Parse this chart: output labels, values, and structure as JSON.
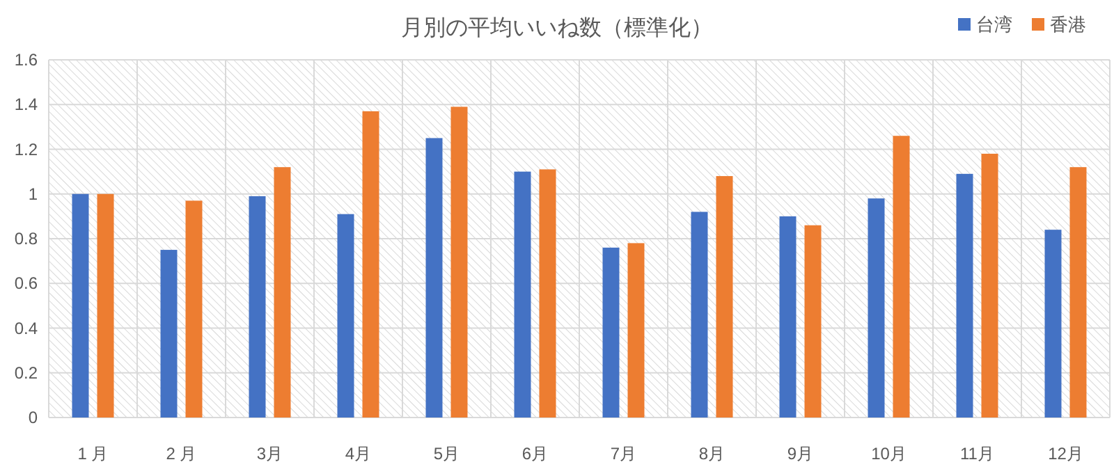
{
  "chart_data": {
    "type": "bar",
    "title": "月別の平均いいね数（標準化）",
    "categories": [
      "1 月",
      "2 月",
      "3月",
      "4月",
      "5月",
      "6月",
      "7月",
      "8月",
      "9月",
      "10月",
      "11月",
      "12月"
    ],
    "series": [
      {
        "name": "台湾",
        "color": "#4472c4",
        "values": [
          1.0,
          0.75,
          0.99,
          0.91,
          1.25,
          1.1,
          0.76,
          0.92,
          0.9,
          0.98,
          1.09,
          0.84
        ]
      },
      {
        "name": "香港",
        "color": "#ed7d31",
        "values": [
          1.0,
          0.97,
          1.12,
          1.37,
          1.39,
          1.11,
          0.78,
          1.08,
          0.86,
          1.26,
          1.18,
          1.12
        ]
      }
    ],
    "ylim": [
      0,
      1.6
    ],
    "yticks": [
      0,
      0.2,
      0.4,
      0.6,
      0.8,
      1,
      1.2,
      1.4,
      1.6
    ],
    "grid": true,
    "legend": "top right"
  }
}
